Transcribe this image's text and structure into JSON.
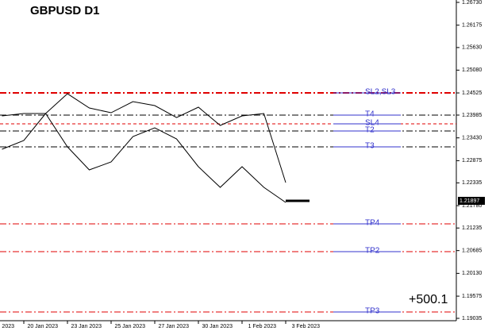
{
  "chart_data": {
    "type": "line",
    "title": "GBPUSD   D1",
    "categories": [
      "2023",
      null,
      "20 Jan 2023",
      null,
      "23 Jan 2023",
      null,
      "25 Jan 2023",
      null,
      "27 Jan 2023",
      null,
      "30 Jan 2023",
      null,
      "1 Feb 2023",
      null,
      "3 Feb 2023"
    ],
    "series": [
      {
        "color": "#000000",
        "values": [
          null,
          1.23965,
          1.24023,
          1.24023,
          1.24506,
          1.24158,
          1.24042,
          1.24313,
          1.24216,
          1.23926,
          1.24178,
          1.23733,
          1.23965,
          1.24023,
          1.22341
        ]
      },
      {
        "color": "#000000",
        "values": [
          null,
          1.23153,
          1.23366,
          1.24023,
          1.23211,
          1.2265,
          1.22844,
          1.23462,
          1.23675,
          1.23404,
          1.22728,
          1.22225,
          1.22728,
          1.22225,
          1.21858
        ]
      }
    ],
    "ylim": [
      1.18977,
      1.26788
    ],
    "yticks": [
      {
        "value": 1.2673,
        "label": "1.26730"
      },
      1.26175,
      {
        "value": 1.2563,
        "label": "1.25630"
      },
      {
        "value": 1.2508,
        "label": "1.25080"
      },
      1.24525,
      1.23985,
      {
        "value": 1.2343,
        "label": "1.23430"
      },
      1.22875,
      1.22335,
      {
        "value": 1.2178,
        "label": "1.21780"
      },
      1.21235,
      1.20685,
      {
        "value": 1.2013,
        "label": "1.20130"
      },
      1.19575,
      1.19035
    ],
    "current_price": 1.21897,
    "levels": [
      {
        "name": "SL2,SL3",
        "value": 1.24525,
        "color": "#e00000",
        "style": "dashdot-thick"
      },
      {
        "name": "T4",
        "value": 1.23985,
        "color": "#000000",
        "style": "dashdot"
      },
      {
        "name": "SL4",
        "value": 1.23771,
        "color": "#e00000",
        "style": "dashed"
      },
      {
        "name": "T2",
        "value": 1.23598,
        "color": "#000000",
        "style": "dashdot"
      },
      {
        "name": "T3",
        "value": 1.23211,
        "color": "#000000",
        "style": "dashdot"
      },
      {
        "name": "TP4",
        "value": 1.21336,
        "color": "#e00000",
        "style": "dashdot"
      },
      {
        "name": "TP2",
        "value": 1.20659,
        "color": "#e00000",
        "style": "dashdot"
      },
      {
        "name": "TP3",
        "value": 1.19189,
        "color": "#e00000",
        "style": "dashdot"
      }
    ],
    "annotation": "+500.1"
  }
}
